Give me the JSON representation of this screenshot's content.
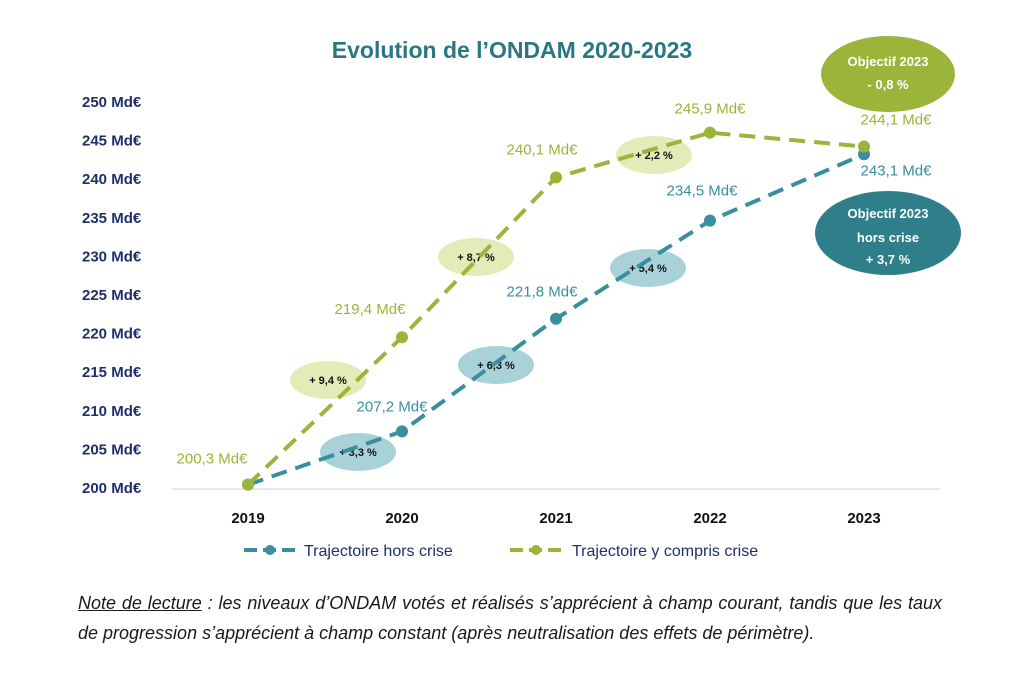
{
  "colors": {
    "title": "#2a7783",
    "axis_text": "#1f2f6b",
    "green": "#9bb43a",
    "teal": "#3a8f9e",
    "green_light": "#e3ebb8",
    "teal_light": "#a8d2d8",
    "objective_teal": "#2f7f8a",
    "axis_line": "#cccccc"
  },
  "chart_data": {
    "type": "line",
    "title": "Evolution de l’ONDAM 2020-2023",
    "categories": [
      "2019",
      "2020",
      "2021",
      "2022",
      "2023"
    ],
    "ylim": [
      200,
      250
    ],
    "yticks": [
      {
        "value": 250,
        "label": "250 Md€"
      },
      {
        "value": 245,
        "label": "245 Md€"
      },
      {
        "value": 240,
        "label": "240 Md€"
      },
      {
        "value": 235,
        "label": "235 Md€"
      },
      {
        "value": 230,
        "label": "230 Md€"
      },
      {
        "value": 225,
        "label": "225 Md€"
      },
      {
        "value": 220,
        "label": "220 Md€"
      },
      {
        "value": 215,
        "label": "215 Md€"
      },
      {
        "value": 210,
        "label": "210 Md€"
      },
      {
        "value": 205,
        "label": "205 Md€"
      },
      {
        "value": 200,
        "label": "200 Md€"
      }
    ],
    "legend_position": "bottom",
    "series": [
      {
        "name": "Trajectoire hors crise",
        "color": "#3a8f9e",
        "values": [
          200.3,
          207.2,
          221.8,
          234.5,
          243.1
        ],
        "point_labels": [
          "",
          "207,2 Md€",
          "221,8 Md€",
          "234,5 Md€",
          "243,1 Md€"
        ],
        "growth_labels": [
          "+ 3,3 %",
          "+ 6,3 %",
          "+ 5,4 %"
        ]
      },
      {
        "name": "Trajectoire y compris crise",
        "color": "#9bb43a",
        "values": [
          200.3,
          219.4,
          240.1,
          245.9,
          244.1
        ],
        "point_labels": [
          "200,3 Md€",
          "219,4 Md€",
          "240,1 Md€",
          "245,9 Md€",
          "244,1 Md€"
        ],
        "growth_labels": [
          "+ 9,4 %",
          "+ 8,7 %",
          "+ 2,2 %"
        ]
      }
    ],
    "objectives": [
      {
        "lines": [
          "Objectif 2023",
          "- 0,8 %"
        ],
        "color": "#9bb43a"
      },
      {
        "lines": [
          "Objectif 2023",
          "hors crise",
          "+ 3,7 %"
        ],
        "color": "#2f7f8a"
      }
    ]
  },
  "note": {
    "label": "Note de lecture",
    "text": " : les niveaux d’ONDAM votés et réalisés s’apprécient à champ courant, tandis que les taux de progression s’apprécient à champ constant (après neutralisation des effets de périmètre)."
  }
}
